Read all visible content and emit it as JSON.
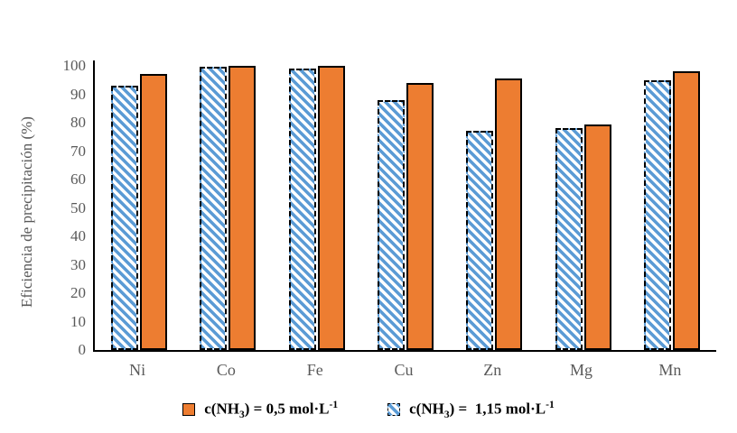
{
  "chart_data": {
    "type": "bar",
    "title": "",
    "xlabel": "",
    "ylabel": "Eficiencia de precipitación  (%)",
    "ylim": [
      0,
      100
    ],
    "yticks": [
      0,
      10,
      20,
      30,
      40,
      50,
      60,
      70,
      80,
      90,
      100
    ],
    "grid": false,
    "legend_position": "bottom",
    "categories": [
      "Ni",
      "Co",
      "Fe",
      "Cu",
      "Zn",
      "Mg",
      "Mn"
    ],
    "series": [
      {
        "name": "c(NH3) = 0,5 mol·L-1",
        "fill": "solid",
        "color": "#ED7D31",
        "border_style": "solid",
        "border_color": "#000000",
        "values": [
          97,
          99.9,
          99.9,
          94,
          95.5,
          79.5,
          98
        ]
      },
      {
        "name": "c(NH3) = 1,15 mol·L-1",
        "fill": "diagonal-hatch",
        "color": "#5B9BD5",
        "hatch_background": "#FFFFFF",
        "border_style": "dash-dot",
        "border_color": "#000000",
        "values": [
          93,
          99.8,
          99.2,
          88,
          77,
          78,
          95
        ]
      }
    ],
    "bar_draw_order": [
      1,
      0
    ],
    "legend_entries": [
      {
        "pre": "c(NH",
        "sub": "3",
        "mid": ") = 0,5 mol·L",
        "sup": "-1",
        "marker": "orange-solid"
      },
      {
        "pre": "c(NH",
        "sub": "3",
        "mid": ") =  1,15 mol·L",
        "sup": "-1",
        "marker": "blue-hatch"
      }
    ],
    "colors": {
      "axis_line": "#000000",
      "tick_text": "#595959",
      "background": "#FFFFFF",
      "orange": "#ED7D31",
      "blue": "#5B9BD5"
    }
  }
}
